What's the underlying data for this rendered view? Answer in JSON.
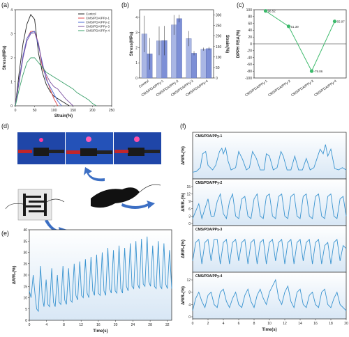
{
  "panels": {
    "a": "(a)",
    "b": "(b)",
    "c": "(c)",
    "d": "(d)",
    "e": "(e)",
    "f": "(f)"
  },
  "colors": {
    "control": "#222222",
    "ppy1": "#e0454a",
    "ppy2": "#4b6ad6",
    "ppy3": "#7a4fa0",
    "ppy4": "#3aa06a",
    "barStress": "#a9b6e4",
    "barStrain": "#7d8fd6",
    "lineC": "#3dba6c",
    "signal": "#3a94d0",
    "fillBlue": "#d8e7f5"
  },
  "chart_data": [
    {
      "type": "line",
      "xlabel": "Strain(%)",
      "ylabel": "Stress(MPa)",
      "xlim": [
        0,
        250
      ],
      "ylim": [
        0,
        4
      ],
      "xticks": [
        "0",
        "50",
        "100",
        "150",
        "200",
        "250"
      ],
      "yticks": [
        "0",
        "1",
        "2",
        "3",
        "4"
      ],
      "legend_position": "top-right",
      "series": [
        {
          "name": "Control",
          "x": [
            0,
            10,
            20,
            30,
            40,
            50,
            60,
            70,
            80,
            90,
            100,
            110,
            120,
            130,
            140
          ],
          "values": [
            0,
            1.4,
            2.6,
            3.4,
            3.8,
            3.6,
            2.2,
            1.4,
            0.9,
            0.6,
            0.4,
            0.3,
            0.2,
            0.1,
            0
          ]
        },
        {
          "name": "CMS/PDA/PPy-1",
          "x": [
            0,
            10,
            20,
            30,
            40,
            50,
            60,
            70,
            80,
            90,
            100,
            110
          ],
          "values": [
            0,
            1.1,
            2.1,
            2.8,
            3.1,
            3.1,
            2.6,
            1.6,
            1.2,
            0.7,
            0.3,
            0
          ]
        },
        {
          "name": "CMS/PDA/PPy-2",
          "x": [
            0,
            10,
            20,
            30,
            40,
            50,
            60,
            70,
            80,
            90,
            100,
            110,
            120
          ],
          "values": [
            0,
            1.1,
            2.1,
            2.8,
            3.05,
            3.1,
            2.5,
            1.8,
            1.1,
            0.8,
            0.5,
            0.2,
            0
          ]
        },
        {
          "name": "CMS/PDA/PPy-3",
          "x": [
            0,
            10,
            20,
            30,
            40,
            50,
            60,
            70,
            80,
            90,
            100,
            110,
            120,
            130,
            140,
            150
          ],
          "values": [
            0,
            1.0,
            2.0,
            2.7,
            3.0,
            3.05,
            2.6,
            1.7,
            1.3,
            1.0,
            0.8,
            0.7,
            0.5,
            0.3,
            0.15,
            0
          ]
        },
        {
          "name": "CMS/PDA/PPy-4",
          "x": [
            0,
            10,
            20,
            30,
            40,
            50,
            60,
            70,
            80,
            90,
            100,
            110,
            120,
            130,
            140,
            150,
            160,
            170,
            180,
            190,
            200,
            210
          ],
          "values": [
            0,
            0.7,
            1.3,
            1.8,
            2.0,
            2.0,
            1.8,
            1.6,
            1.4,
            1.3,
            1.2,
            1.1,
            1.0,
            0.9,
            0.8,
            0.7,
            0.55,
            0.45,
            0.35,
            0.25,
            0.1,
            0
          ]
        }
      ]
    },
    {
      "type": "bar",
      "ylabel": "Stress(MPa)",
      "ylabel2": "Strain(%)",
      "ylim": [
        0,
        4.5
      ],
      "ylim2": [
        0,
        325
      ],
      "yticks": [
        "0",
        "1",
        "2",
        "3",
        "4"
      ],
      "yticks2": [
        "0",
        "50",
        "100",
        "150",
        "200",
        "250",
        "300"
      ],
      "categories": [
        "Control",
        "CMS/PDA/PPy-1",
        "CMS/PDA/PPy-2",
        "CMS/PDA/PPy-3",
        "CMS/PDA/PPy-4"
      ],
      "series": [
        {
          "values": [
            2.9,
            2.45,
            3.5,
            2.6,
            1.9
          ],
          "err": [
            1.2,
            0.95,
            0.65,
            0.5,
            0.1
          ]
        },
        {
          "values": [
            115,
            178,
            283,
            118,
            140
          ],
          "err": [
            75,
            70,
            18,
            10,
            8
          ]
        }
      ]
    },
    {
      "type": "line",
      "ylabel": "DPPH RSA(%)",
      "ylim": [
        -100,
        100
      ],
      "yticks": [
        "-100",
        "-80",
        "-60",
        "-40",
        "-20",
        "0",
        "20",
        "40",
        "60",
        "80",
        "100"
      ],
      "categories": [
        "CMS/PDA/PPy-1",
        "CMS/PDA/PPy-2",
        "CMS/PDA/PPy-3",
        "CMS/PDA/PPy-4"
      ],
      "values": [
        96.52,
        51.39,
        -79.86,
        65.97
      ],
      "labels": [
        "96.52",
        "51.39",
        "-79.86",
        "65.97"
      ]
    },
    {
      "type": "line",
      "xlabel": "Time(s)",
      "ylabel": "ΔR/R₀(%)",
      "xlim": [
        0,
        33
      ],
      "ylim": [
        0,
        40
      ],
      "xticks": [
        "0",
        "4",
        "8",
        "12",
        "16",
        "20",
        "24",
        "28",
        "32"
      ],
      "yticks": [
        "0",
        "5",
        "10",
        "15",
        "20",
        "25",
        "30",
        "35",
        "40"
      ],
      "x": [
        0,
        0.4,
        0.9,
        1.3,
        1.7,
        2.1,
        2.6,
        3.0,
        3.4,
        3.9,
        4.3,
        4.7,
        5.2,
        5.6,
        6.0,
        6.5,
        6.9,
        7.3,
        7.8,
        8.2,
        8.6,
        9.1,
        9.5,
        9.9,
        10.4,
        10.8,
        11.2,
        11.7,
        12.1,
        12.5,
        13.0,
        13.4,
        13.8,
        14.3,
        14.7,
        15.1,
        15.6,
        16.0,
        16.4,
        16.9,
        17.3,
        17.7,
        18.2,
        18.6,
        19.0,
        19.5,
        19.9,
        20.3,
        20.8,
        21.2,
        21.6,
        22.1,
        22.5,
        22.9,
        23.4,
        23.8,
        24.2,
        24.7,
        25.1,
        25.5,
        26.0,
        26.4,
        26.8,
        27.3,
        27.7,
        28.1,
        28.6,
        29.0,
        29.4,
        29.9,
        30.3,
        30.7,
        31.2,
        31.6,
        32.0,
        32.5,
        33.0
      ],
      "values": [
        13,
        10,
        20,
        12,
        5,
        4,
        24,
        10,
        6,
        18,
        7,
        6,
        23,
        8,
        6,
        20,
        8,
        7,
        24,
        9,
        7,
        23,
        9,
        8,
        25,
        11,
        9,
        26,
        11,
        10,
        27,
        12,
        10,
        28,
        13,
        11,
        29,
        12,
        11,
        30,
        13,
        11,
        32,
        14,
        12,
        31,
        13,
        12,
        33,
        14,
        12,
        32,
        15,
        13,
        34,
        15,
        14,
        35,
        16,
        14,
        36,
        16,
        15,
        37,
        17,
        15,
        33,
        15,
        14,
        35,
        15,
        14,
        34,
        16,
        14,
        31,
        14
      ]
    },
    {
      "type": "line",
      "xlabel": "Time(s)",
      "ylabel": "ΔR/R₀(%)",
      "xlim": [
        0,
        20
      ],
      "xticks": [
        "0",
        "2",
        "4",
        "6",
        "8",
        "10",
        "12",
        "14",
        "16",
        "18",
        "20"
      ],
      "subplots": [
        {
          "name": "CMS/PDA/PPy-1",
          "ylim": [
            0,
            80
          ],
          "yticks": [],
          "x": [
            0,
            0.5,
            1.0,
            1.3,
            1.7,
            2.0,
            2.6,
            3.0,
            3.5,
            3.8,
            4.0,
            4.3,
            4.6,
            5.0,
            5.6,
            6.0,
            6.5,
            7.0,
            7.4,
            7.8,
            8.3,
            8.8,
            9.3,
            9.6,
            10.0,
            10.5,
            11.0,
            11.5,
            11.8,
            12.3,
            12.8,
            13.3,
            13.8,
            14.3,
            14.8,
            15.3,
            15.8,
            16.3,
            16.6,
            17.0,
            17.3,
            17.6,
            18.0,
            18.5,
            19.0,
            19.5,
            20.0
          ],
          "values": [
            10,
            12,
            20,
            50,
            55,
            25,
            15,
            25,
            55,
            62,
            50,
            63,
            35,
            15,
            20,
            55,
            38,
            15,
            20,
            55,
            40,
            15,
            15,
            50,
            45,
            15,
            20,
            55,
            45,
            15,
            15,
            45,
            15,
            15,
            40,
            15,
            20,
            45,
            60,
            50,
            70,
            45,
            60,
            18,
            15,
            20,
            15
          ]
        },
        {
          "name": "CMS/PDA/PPy-2",
          "ylim": [
            0,
            15
          ],
          "yticks": [
            "0",
            "3",
            "6",
            "9",
            "12",
            "15"
          ],
          "x": [
            0,
            0.4,
            0.8,
            1.2,
            1.6,
            2.0,
            2.4,
            2.8,
            3.2,
            3.6,
            4.0,
            4.4,
            4.8,
            5.2,
            5.6,
            6.0,
            6.4,
            6.8,
            7.2,
            7.6,
            8.0,
            8.4,
            8.8,
            9.2,
            9.6,
            10.0,
            10.4,
            10.8,
            11.2,
            11.6,
            12.0,
            12.4,
            12.8,
            13.2,
            13.6,
            14.0,
            14.4,
            14.8,
            15.2,
            15.6,
            16.0,
            16.4,
            16.8,
            17.2,
            17.6,
            18.0,
            18.4,
            18.8,
            19.2,
            19.6,
            20.0
          ],
          "values": [
            2,
            5,
            8,
            2,
            6,
            10,
            3,
            3,
            9,
            12,
            4,
            2,
            9,
            12,
            3,
            2,
            10,
            11,
            3,
            2,
            10,
            12,
            3,
            2,
            11,
            12,
            3,
            2,
            11,
            12,
            3,
            2,
            11,
            12,
            3,
            2,
            11,
            12,
            3,
            2,
            11,
            12,
            3,
            2,
            11,
            12,
            3,
            2,
            10,
            11,
            3
          ]
        },
        {
          "name": "CMS/PDA/PPy-3",
          "ylim": [
            0,
            12
          ],
          "yticks": [],
          "x": [
            0,
            0.4,
            0.8,
            1.2,
            1.6,
            2.0,
            2.4,
            2.8,
            3.2,
            3.6,
            4.0,
            4.4,
            4.8,
            5.2,
            5.6,
            6.0,
            6.4,
            6.8,
            7.2,
            7.6,
            8.0,
            8.4,
            8.8,
            9.2,
            9.6,
            10.0,
            10.4,
            10.8,
            11.2,
            11.6,
            12.0,
            12.4,
            12.8,
            13.2,
            13.6,
            14.0,
            14.4,
            14.8,
            15.2,
            15.6,
            16.0,
            16.4,
            16.8,
            17.2,
            17.6,
            18.0,
            18.4,
            18.8,
            19.2,
            19.6,
            20.0
          ],
          "values": [
            3,
            9,
            10,
            2,
            9,
            10,
            3,
            10,
            10,
            2,
            9,
            10,
            2,
            9,
            10,
            3,
            9,
            10,
            2,
            9,
            10,
            2,
            9,
            10,
            2,
            9,
            10,
            3,
            9,
            10,
            2,
            9,
            10,
            2,
            9,
            10,
            3,
            9,
            10,
            2,
            9,
            10,
            2,
            8,
            9,
            2,
            9,
            10,
            3,
            8,
            7
          ]
        },
        {
          "name": "CMS/PDA/PPy-4",
          "ylim": [
            0,
            12
          ],
          "yticks": [
            "0",
            "4",
            "8",
            "12"
          ],
          "x": [
            0,
            0.4,
            0.8,
            1.2,
            1.6,
            2.0,
            2.4,
            2.8,
            3.2,
            3.6,
            4.0,
            4.4,
            4.8,
            5.2,
            5.6,
            6.0,
            6.4,
            6.8,
            7.2,
            7.6,
            8.0,
            8.4,
            8.8,
            9.2,
            9.6,
            10.0,
            10.4,
            10.8,
            11.2,
            11.6,
            12.0,
            12.4,
            12.8,
            13.2,
            13.6,
            14.0,
            14.4,
            14.8,
            15.2,
            15.6,
            16.0,
            16.4,
            16.8,
            17.2,
            17.6,
            18.0,
            18.4,
            18.8,
            19.2,
            19.6,
            20.0
          ],
          "values": [
            2,
            6,
            8,
            5,
            3,
            7,
            8,
            4,
            3,
            8,
            9,
            5,
            3,
            6,
            8,
            4,
            3,
            7,
            9,
            5,
            3,
            7,
            9,
            6,
            4,
            8,
            10,
            12,
            6,
            4,
            8,
            10,
            5,
            3,
            8,
            9,
            4,
            3,
            7,
            8,
            4,
            3,
            8,
            9,
            4,
            3,
            6,
            8,
            4,
            3,
            2
          ]
        }
      ]
    }
  ]
}
